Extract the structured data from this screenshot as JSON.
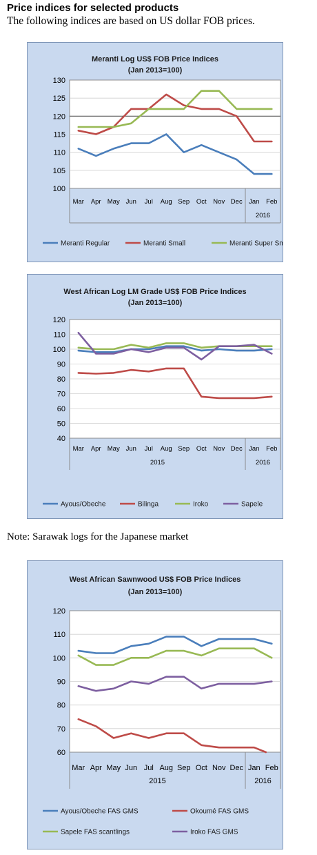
{
  "page": {
    "heading": "Price indices for selected products",
    "subheading": "The following indices are based on US dollar FOB prices.",
    "note": "Note: Sarawak logs for the Japanese market"
  },
  "chart_data": [
    {
      "type": "line",
      "title": "Meranti Log US$ FOB Price Indices",
      "subtitle": "(Jan 2013=100)",
      "categories": [
        "Mar",
        "Apr",
        "May",
        "Jun",
        "Jul",
        "Aug",
        "Sep",
        "Oct",
        "Nov",
        "Dec",
        "Jan",
        "Feb"
      ],
      "year_labels": [
        {
          "label": "2016",
          "span": [
            "Jan",
            "Feb"
          ]
        }
      ],
      "ylim": [
        100,
        130
      ],
      "yticks": [
        100,
        105,
        110,
        115,
        120,
        125,
        130
      ],
      "highlight_gridline": 120,
      "legend_position": "bottom",
      "series": [
        {
          "name": "Meranti Regular",
          "color": "#4a7ebb",
          "values": [
            111,
            109,
            111,
            112.5,
            112.5,
            115,
            110,
            112,
            110,
            108,
            104,
            104
          ]
        },
        {
          "name": "Meranti Small",
          "color": "#be4b48",
          "values": [
            116,
            115,
            117,
            122,
            122,
            126,
            123,
            122,
            122,
            120,
            113,
            113
          ]
        },
        {
          "name": "Meranti Super Small",
          "color": "#98b954",
          "values": [
            117,
            117,
            117,
            118,
            122,
            122,
            122,
            127,
            127,
            122,
            122,
            122
          ]
        }
      ]
    },
    {
      "type": "line",
      "title": "West African Log LM Grade US$ FOB Price Indices",
      "subtitle": "(Jan 2013=100)",
      "categories": [
        "Mar",
        "Apr",
        "May",
        "Jun",
        "Jul",
        "Aug",
        "Sep",
        "Oct",
        "Nov",
        "Dec",
        "Jan",
        "Feb"
      ],
      "year_labels": [
        {
          "label": "2015",
          "span": [
            "Mar",
            "Dec"
          ]
        },
        {
          "label": "2016",
          "span": [
            "Jan",
            "Feb"
          ]
        }
      ],
      "ylim": [
        40,
        120
      ],
      "yticks": [
        40,
        50,
        60,
        70,
        80,
        90,
        100,
        110,
        120
      ],
      "legend_position": "bottom",
      "series": [
        {
          "name": "Ayous/Obeche",
          "color": "#4a7ebb",
          "values": [
            99,
            98,
            98,
            100,
            100,
            102,
            102,
            99,
            100,
            99,
            99,
            100
          ]
        },
        {
          "name": "Bilinga",
          "color": "#be4b48",
          "values": [
            84,
            83.5,
            84,
            86,
            85,
            87,
            87,
            68,
            67,
            67,
            67,
            68
          ]
        },
        {
          "name": "Iroko",
          "color": "#98b954",
          "values": [
            101,
            100,
            100,
            103,
            101,
            104,
            104,
            101,
            102,
            102,
            102,
            102
          ]
        },
        {
          "name": "Sapele",
          "color": "#7d5fa0",
          "values": [
            111,
            97,
            97,
            100,
            98,
            101,
            101,
            93,
            102,
            102,
            103,
            97
          ]
        }
      ]
    },
    {
      "type": "line",
      "title": "West African Sawnwood US$ FOB Price Indices",
      "subtitle": "(Jan 2013=100)",
      "categories": [
        "Mar",
        "Apr",
        "May",
        "Jun",
        "Jul",
        "Aug",
        "Sep",
        "Oct",
        "Nov",
        "Dec",
        "Jan",
        "Feb"
      ],
      "year_labels": [
        {
          "label": "2015",
          "span": [
            "Mar",
            "Dec"
          ]
        },
        {
          "label": "2016",
          "span": [
            "Jan",
            "Feb"
          ]
        }
      ],
      "ylim": [
        60,
        120
      ],
      "yticks": [
        60,
        70,
        80,
        90,
        100,
        110,
        120
      ],
      "legend_position": "bottom",
      "series": [
        {
          "name": "Ayous/Obeche FAS GMS",
          "color": "#4a7ebb",
          "values": [
            103,
            102,
            102,
            105,
            106,
            109,
            109,
            105,
            108,
            108,
            108,
            106
          ]
        },
        {
          "name": "Okoumé FAS GMS",
          "color": "#be4b48",
          "values": [
            74,
            71,
            66,
            68,
            66,
            68,
            68,
            63,
            62,
            62,
            62,
            59
          ]
        },
        {
          "name": "Sapele FAS scantlings",
          "color": "#98b954",
          "values": [
            101,
            97,
            97,
            100,
            100,
            103,
            103,
            101,
            104,
            104,
            104,
            100
          ]
        },
        {
          "name": "Iroko FAS GMS",
          "color": "#7d5fa0",
          "values": [
            88,
            86,
            87,
            90,
            89,
            92,
            92,
            87,
            89,
            89,
            89,
            90
          ]
        }
      ]
    }
  ]
}
